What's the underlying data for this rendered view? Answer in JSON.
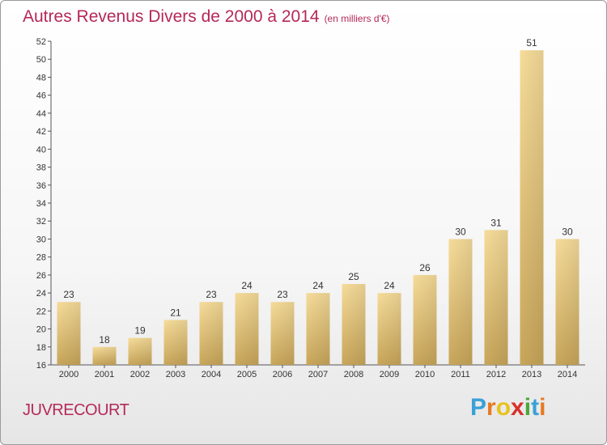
{
  "title": "Autres Revenus Divers de 2000 à 2014",
  "subtitle": "(en milliers d'€)",
  "commune": "JUVRECOURT",
  "logo": {
    "letters": [
      "P",
      "r",
      "o",
      "x",
      "i",
      "t",
      "i"
    ],
    "colors": [
      "#3aa0d8",
      "#e8791e",
      "#e8c21e",
      "#d8302a",
      "#4aa83a",
      "#3aa0d8",
      "#e8791e"
    ]
  },
  "chart_data": {
    "type": "bar",
    "title": "Autres Revenus Divers de 2000 à 2014",
    "subtitle": "(en milliers d'€)",
    "categories": [
      "2000",
      "2001",
      "2002",
      "2003",
      "2004",
      "2005",
      "2006",
      "2007",
      "2008",
      "2009",
      "2010",
      "2011",
      "2012",
      "2013",
      "2014"
    ],
    "values": [
      23,
      18,
      19,
      21,
      23,
      24,
      23,
      24,
      25,
      24,
      26,
      30,
      31,
      51,
      30
    ],
    "ylim": [
      16,
      52
    ],
    "yticks": [
      16,
      18,
      20,
      22,
      24,
      26,
      28,
      30,
      32,
      34,
      36,
      38,
      40,
      42,
      44,
      46,
      48,
      50,
      52
    ],
    "grid": false,
    "bar_color": "#e8c87a"
  }
}
